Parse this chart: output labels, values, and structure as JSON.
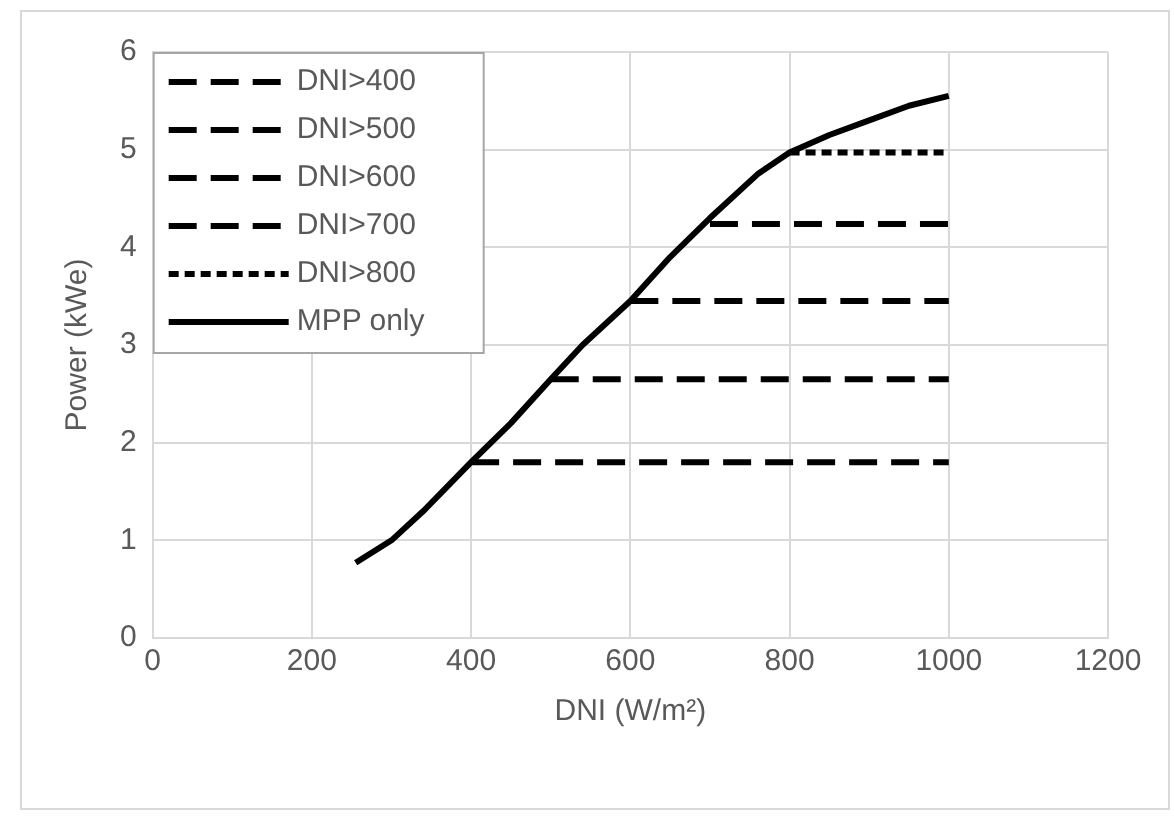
{
  "chart_data": {
    "type": "line",
    "xlabel": "DNI (W/m²)",
    "ylabel": "Power (kWe)",
    "xlim": [
      0,
      1200
    ],
    "xticks": [
      0,
      200,
      400,
      600,
      800,
      1000,
      1200
    ],
    "ylim": [
      0,
      6
    ],
    "yticks": [
      0,
      1,
      2,
      3,
      4,
      5,
      6
    ],
    "grid": true,
    "legend": "top left",
    "marker": "none",
    "series": [
      {
        "name": "DNI>400",
        "color": "#000000",
        "line_style": "dashed",
        "x": [
          400,
          1000
        ],
        "values": [
          1.8,
          1.8
        ]
      },
      {
        "name": "DNI>500",
        "color": "#000000",
        "line_style": "dashed",
        "x": [
          500,
          1000
        ],
        "values": [
          2.65,
          2.65
        ]
      },
      {
        "name": "DNI>600",
        "color": "#000000",
        "line_style": "dashed",
        "x": [
          600,
          1000
        ],
        "values": [
          3.45,
          3.45
        ]
      },
      {
        "name": "DNI>700",
        "color": "#000000",
        "line_style": "dashed",
        "x": [
          700,
          1000
        ],
        "values": [
          4.24,
          4.24
        ]
      },
      {
        "name": "DNI>800",
        "color": "#000000",
        "line_style": "dotted",
        "x": [
          800,
          1000
        ],
        "values": [
          4.97,
          4.97
        ]
      },
      {
        "name": "MPP only",
        "color": "#000000",
        "line_style": "solid",
        "x": [
          255,
          300,
          340,
          400,
          450,
          500,
          540,
          600,
          650,
          700,
          760,
          800,
          850,
          900,
          950,
          1000
        ],
        "values": [
          0.77,
          1.0,
          1.3,
          1.8,
          2.2,
          2.65,
          3.0,
          3.45,
          3.9,
          4.3,
          4.75,
          4.97,
          5.15,
          5.3,
          5.45,
          5.55
        ]
      }
    ]
  }
}
